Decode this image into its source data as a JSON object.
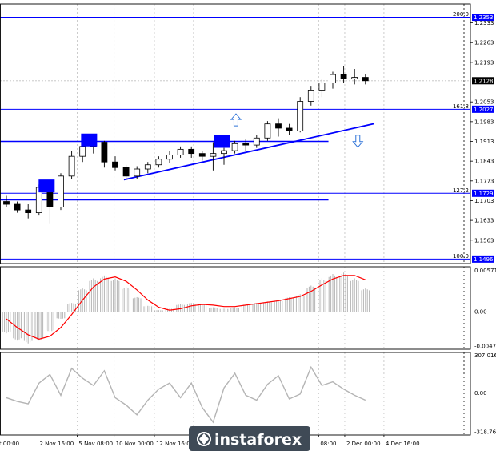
{
  "chart_data": [
    {
      "type": "candlestick",
      "panel": "price",
      "y_ticks": [
        "1.2333",
        "1.2263",
        "1.2193",
        "1.2053",
        "1.1983",
        "1.1913",
        "1.1843",
        "1.1773",
        "1.1703",
        "1.1633",
        "1.1563"
      ],
      "y_tick_values": [
        1.2333,
        1.2263,
        1.2193,
        1.2053,
        1.1983,
        1.1913,
        1.1843,
        1.1773,
        1.1703,
        1.1633,
        1.1563
      ],
      "ylim": [
        1.148,
        1.24
      ],
      "current_price": "1.2128",
      "current_price_value": 1.2128,
      "fib_levels": [
        {
          "label": "200.0",
          "price": "1.2353",
          "value": 1.2353
        },
        {
          "label": "161.8",
          "price": "1.2027",
          "value": 1.2027
        },
        {
          "label": "127.2",
          "price": "1.1729",
          "value": 1.1729
        },
        {
          "label": "100.0",
          "price": "1.1496",
          "value": 1.1496
        }
      ],
      "horizontal_levels": [
        1.1913,
        1.1706
      ],
      "trendline": {
        "from": [
          10.8,
          1.1777
        ],
        "to": [
          33.8,
          1.1976
        ]
      },
      "markers": [
        {
          "kind": "box",
          "bar": 3.7,
          "value": 1.1755
        },
        {
          "kind": "box",
          "bar": 7.6,
          "value": 1.1918
        },
        {
          "kind": "box",
          "bar": 19.8,
          "value": 1.1913
        },
        {
          "kind": "arrow-up",
          "bar": 21.1,
          "value": 1.1988
        },
        {
          "kind": "arrow-down",
          "bar": 32.3,
          "value": 1.1915
        }
      ],
      "series": [
        {
          "o": 1.17,
          "h": 1.172,
          "l": 1.168,
          "c": 1.169
        },
        {
          "o": 1.169,
          "h": 1.17,
          "l": 1.166,
          "c": 1.167
        },
        {
          "o": 1.167,
          "h": 1.169,
          "l": 1.164,
          "c": 1.166
        },
        {
          "o": 1.166,
          "h": 1.176,
          "l": 1.165,
          "c": 1.175
        },
        {
          "o": 1.175,
          "h": 1.177,
          "l": 1.162,
          "c": 1.168
        },
        {
          "o": 1.168,
          "h": 1.18,
          "l": 1.167,
          "c": 1.179
        },
        {
          "o": 1.179,
          "h": 1.188,
          "l": 1.178,
          "c": 1.186
        },
        {
          "o": 1.186,
          "h": 1.191,
          "l": 1.184,
          "c": 1.1895
        },
        {
          "o": 1.1895,
          "h": 1.193,
          "l": 1.187,
          "c": 1.191
        },
        {
          "o": 1.191,
          "h": 1.1915,
          "l": 1.182,
          "c": 1.184
        },
        {
          "o": 1.184,
          "h": 1.186,
          "l": 1.181,
          "c": 1.182
        },
        {
          "o": 1.182,
          "h": 1.183,
          "l": 1.1775,
          "c": 1.179
        },
        {
          "o": 1.179,
          "h": 1.1825,
          "l": 1.178,
          "c": 1.1815
        },
        {
          "o": 1.1815,
          "h": 1.184,
          "l": 1.18,
          "c": 1.183
        },
        {
          "o": 1.183,
          "h": 1.186,
          "l": 1.182,
          "c": 1.185
        },
        {
          "o": 1.185,
          "h": 1.188,
          "l": 1.1835,
          "c": 1.1865
        },
        {
          "o": 1.1865,
          "h": 1.1895,
          "l": 1.1855,
          "c": 1.1885
        },
        {
          "o": 1.1885,
          "h": 1.1895,
          "l": 1.1855,
          "c": 1.187
        },
        {
          "o": 1.187,
          "h": 1.188,
          "l": 1.1845,
          "c": 1.186
        },
        {
          "o": 1.186,
          "h": 1.191,
          "l": 1.181,
          "c": 1.187
        },
        {
          "o": 1.187,
          "h": 1.189,
          "l": 1.183,
          "c": 1.188
        },
        {
          "o": 1.188,
          "h": 1.1915,
          "l": 1.187,
          "c": 1.1905
        },
        {
          "o": 1.1905,
          "h": 1.192,
          "l": 1.188,
          "c": 1.19
        },
        {
          "o": 1.19,
          "h": 1.1935,
          "l": 1.189,
          "c": 1.1925
        },
        {
          "o": 1.1925,
          "h": 1.1985,
          "l": 1.1915,
          "c": 1.1975
        },
        {
          "o": 1.1975,
          "h": 1.1995,
          "l": 1.193,
          "c": 1.196
        },
        {
          "o": 1.196,
          "h": 1.1975,
          "l": 1.1935,
          "c": 1.195
        },
        {
          "o": 1.195,
          "h": 1.207,
          "l": 1.1945,
          "c": 1.2055
        },
        {
          "o": 1.2055,
          "h": 1.211,
          "l": 1.204,
          "c": 1.2095
        },
        {
          "o": 1.2095,
          "h": 1.2135,
          "l": 1.207,
          "c": 1.212
        },
        {
          "o": 1.212,
          "h": 1.216,
          "l": 1.21,
          "c": 1.215
        },
        {
          "o": 1.215,
          "h": 1.218,
          "l": 1.212,
          "c": 1.2135
        },
        {
          "o": 1.2135,
          "h": 1.217,
          "l": 1.2115,
          "c": 1.214
        },
        {
          "o": 1.214,
          "h": 1.215,
          "l": 1.2115,
          "c": 1.2128
        }
      ]
    },
    {
      "type": "bar",
      "panel": "macd",
      "y_ticks": [
        "0.00571",
        "0.00",
        "-0.00475"
      ],
      "y_tick_values": [
        0.00571,
        0.0,
        -0.00475
      ],
      "ylim": [
        -0.0052,
        0.0062
      ],
      "histogram": [
        -0.003,
        -0.004,
        -0.0044,
        -0.004,
        -0.0028,
        -0.001,
        0.0012,
        0.0032,
        0.0046,
        0.005,
        0.0046,
        0.0034,
        0.002,
        0.0008,
        0.0002,
        0.0004,
        0.001,
        0.0012,
        0.001,
        0.0006,
        0.0004,
        0.0006,
        0.001,
        0.0012,
        0.0014,
        0.0016,
        0.002,
        0.0024,
        0.0036,
        0.0046,
        0.0052,
        0.0054,
        0.0046,
        0.0032
      ],
      "signal": [
        -0.001,
        -0.0022,
        -0.0032,
        -0.0038,
        -0.0034,
        -0.0022,
        -0.0004,
        0.0016,
        0.0034,
        0.0045,
        0.0048,
        0.0042,
        0.003,
        0.0016,
        0.0006,
        0.0002,
        0.0004,
        0.0008,
        0.001,
        0.0009,
        0.0007,
        0.0007,
        0.0009,
        0.0011,
        0.0013,
        0.0015,
        0.0018,
        0.0021,
        0.0028,
        0.0037,
        0.0045,
        0.005,
        0.005,
        0.0044
      ]
    },
    {
      "type": "line",
      "panel": "oscillator",
      "y_ticks": [
        "307.0161",
        "0.00",
        "-318.767"
      ],
      "y_tick_values": [
        307.0161,
        0.0,
        -318.767
      ],
      "ylim": [
        -345,
        330
      ],
      "values": [
        -40,
        -70,
        -90,
        80,
        150,
        -20,
        200,
        120,
        60,
        180,
        -40,
        -100,
        -180,
        -60,
        30,
        80,
        -40,
        80,
        -120,
        -240,
        40,
        160,
        -20,
        -60,
        70,
        140,
        -50,
        -10,
        210,
        60,
        90,
        30,
        -20,
        -60
      ]
    }
  ],
  "x_labels": [
    "ct 00:00",
    "2 Nov 16:00",
    "5 Nov 08:00",
    "10 Nov 00:00",
    "12 Nov 16:00",
    "16",
    "08:00",
    "2 Dec 00:00",
    "4 Dec 16:00"
  ],
  "x_label_bars": [
    -1.1,
    2.9,
    6.5,
    9.9,
    13.6,
    17.2,
    28.7,
    31.1,
    34.7
  ],
  "watermark": "instaforex",
  "colors": {
    "level": "#0000ff",
    "trendline": "#0000ff",
    "box": "#0000ff",
    "arrow": "#2f73d8",
    "candle": "#000000",
    "signal_line": "#ff0000",
    "histogram": "#b4b4b4",
    "oscillator_line": "#b4b4b4",
    "grid": "#c0c0c0",
    "badge": "#0000ff",
    "watermark_bg": "#3f4a56"
  },
  "icons": {
    "arrow_up": "hollow-up-arrow",
    "arrow_down": "hollow-down-arrow",
    "logo": "instaforex-logo-icon"
  }
}
